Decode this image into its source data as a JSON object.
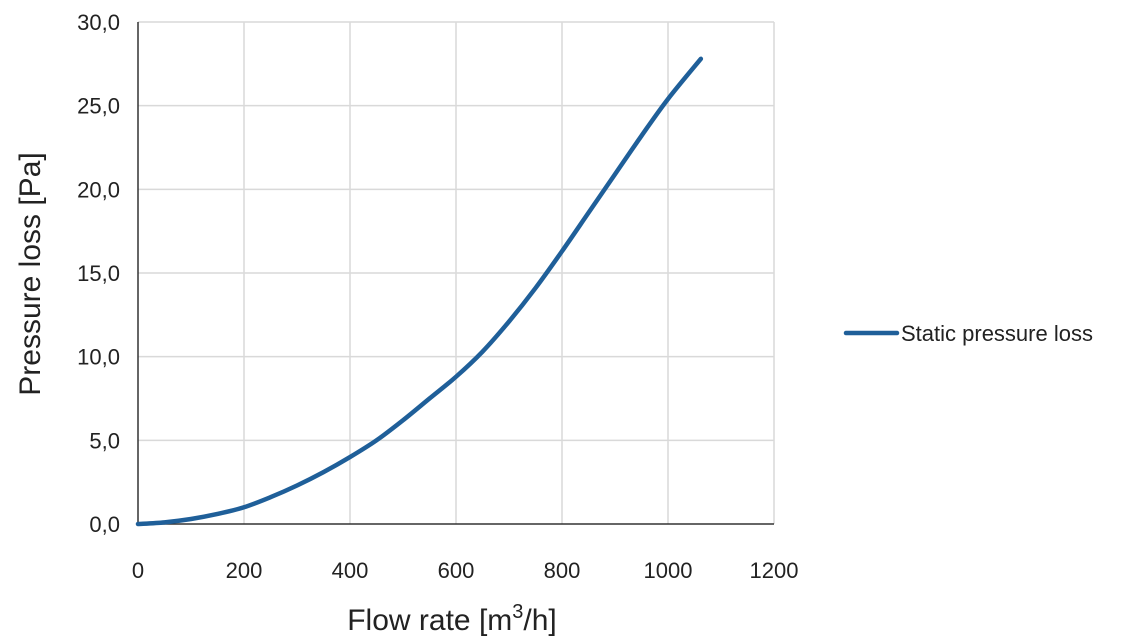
{
  "chart_data": {
    "type": "line",
    "title": "",
    "xlabel_main": "Flow rate [m",
    "xlabel_sup": "3",
    "xlabel_tail": "/h]",
    "ylabel": "Pressure loss [Pa]",
    "xlim": [
      0,
      1200
    ],
    "ylim": [
      0,
      30
    ],
    "x_ticks": [
      "0",
      "200",
      "400",
      "600",
      "800",
      "1000",
      "1200"
    ],
    "y_ticks": [
      "0,0",
      "5,0",
      "10,0",
      "15,0",
      "20,0",
      "25,0",
      "30,0"
    ],
    "grid": true,
    "legend_position": "right",
    "series": [
      {
        "name": "Static pressure loss",
        "color": "#1f5f99",
        "x": [
          0,
          50,
          100,
          150,
          200,
          250,
          300,
          350,
          400,
          450,
          500,
          550,
          600,
          650,
          700,
          750,
          800,
          850,
          900,
          950,
          1000,
          1062
        ],
        "y": [
          0.0,
          0.1,
          0.3,
          0.6,
          1.0,
          1.6,
          2.3,
          3.1,
          4.0,
          5.0,
          6.2,
          7.5,
          8.8,
          10.3,
          12.1,
          14.1,
          16.3,
          18.6,
          20.9,
          23.2,
          25.4,
          27.8
        ]
      }
    ]
  }
}
